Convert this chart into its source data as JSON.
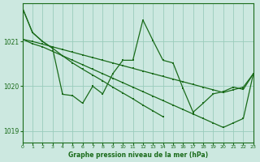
{
  "title": "Graphe pression niveau de la mer (hPa)",
  "bg_color": "#cce8e0",
  "grid_color": "#99ccbb",
  "line_color": "#1a6b1a",
  "xlim": [
    0,
    23
  ],
  "ylim": [
    1018.75,
    1021.85
  ],
  "yticks": [
    1019,
    1020,
    1021
  ],
  "xtick_labels": [
    "0",
    "1",
    "2",
    "3",
    "4",
    "5",
    "6",
    "7",
    "8",
    "9",
    "10",
    "11",
    "12",
    "13",
    "14",
    "15",
    "16",
    "17",
    "18",
    "19",
    "20",
    "21",
    "22",
    "23"
  ],
  "figsize": [
    3.2,
    2.0
  ],
  "dpi": 100,
  "series": {
    "jagged": [
      1021.75,
      1021.2,
      1021.0,
      1020.85,
      1019.82,
      1019.79,
      1019.62,
      1020.0,
      1019.83,
      1020.28,
      1020.58,
      1020.58,
      1021.48,
      1021.02,
      1020.58,
      1020.52,
      1019.95,
      1019.42,
      1019.62,
      1019.83,
      1019.88,
      1019.98,
      1019.93,
      1020.28
    ],
    "trend1": [
      1021.05,
      1020.95,
      1020.88,
      1020.78,
      1020.68,
      1020.58,
      1020.48,
      1020.38,
      1020.28,
      1020.18,
      1020.08,
      1019.98,
      1019.88,
      1019.78,
      1019.68,
      1019.58,
      1019.48,
      1019.38,
      1019.28,
      1019.18,
      1019.08,
      1019.18,
      1019.28,
      1020.28
    ],
    "trend2": [
      1021.05,
      1021.0,
      1020.94,
      1020.88,
      1020.82,
      1020.76,
      1020.7,
      1020.64,
      1020.58,
      1020.52,
      1020.46,
      1020.4,
      1020.34,
      1020.28,
      1020.22,
      1020.16,
      1020.1,
      1020.04,
      1019.98,
      1019.92,
      1019.86,
      1019.92,
      1019.98,
      1020.28
    ],
    "trend3_x": [
      0,
      1,
      2,
      3,
      4,
      5,
      6,
      7,
      8,
      9,
      10,
      11,
      12,
      13,
      14
    ],
    "trend3_y": [
      1021.75,
      1021.2,
      1021.0,
      1020.85,
      1020.68,
      1020.52,
      1020.38,
      1020.25,
      1020.12,
      1019.98,
      1019.85,
      1019.72,
      1019.58,
      1019.45,
      1019.32
    ]
  }
}
